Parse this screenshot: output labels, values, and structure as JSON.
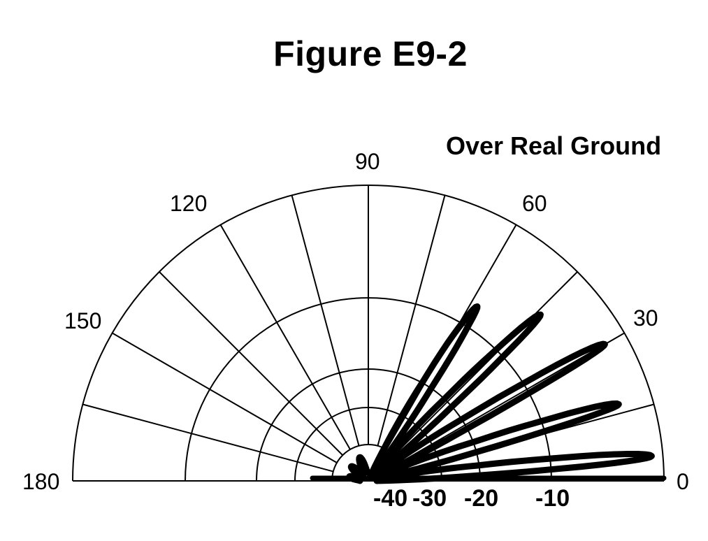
{
  "title": "Figure E9-2",
  "subtitle": "Over Real Ground",
  "colors": {
    "line": "#000000",
    "pattern": "#000000",
    "background": "#ffffff"
  },
  "chart_data": {
    "type": "polar",
    "angle_labels": [
      "0",
      "30",
      "60",
      "90",
      "120",
      "150",
      "180"
    ],
    "radial_labels": [
      "-40",
      "-30",
      "-20",
      "-10"
    ],
    "radial_rings_db": [
      -50,
      -40,
      -30,
      -20,
      -10,
      0
    ],
    "radial_range_db": [
      -50,
      0
    ],
    "spoke_step_deg": 15,
    "series": [
      {
        "lobes_deg_db": [
          [
            0,
            -50
          ],
          [
            5,
            -1
          ],
          [
            12,
            -50
          ],
          [
            17,
            -3
          ],
          [
            25,
            -50
          ],
          [
            30,
            -2
          ],
          [
            38,
            -50
          ],
          [
            44,
            -5
          ],
          [
            52,
            -50
          ],
          [
            58,
            -8
          ],
          [
            67,
            -50
          ],
          [
            90,
            -55
          ]
        ]
      }
    ]
  }
}
